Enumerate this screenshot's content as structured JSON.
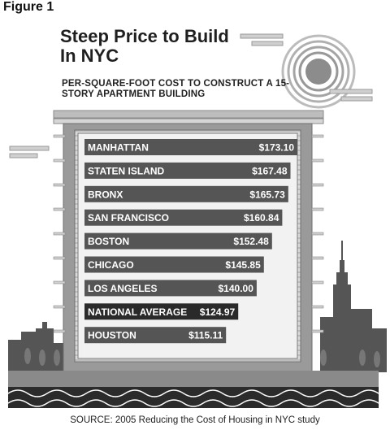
{
  "figure_label": "Figure 1",
  "source": "SOURCE: 2005 Reducing the Cost of Housing in NYC study",
  "chart_data": {
    "type": "bar",
    "orientation": "horizontal",
    "title": "Steep Price to Build In NYC",
    "subtitle": "PER-SQUARE-FOOT COST TO CONSTRUCT A 15-STORY APARTMENT BUILDING",
    "categories": [
      "MANHATTAN",
      "STATEN ISLAND",
      "BRONX",
      "SAN FRANCISCO",
      "BOSTON",
      "CHICAGO",
      "LOS ANGELES",
      "NATIONAL AVERAGE",
      "HOUSTON"
    ],
    "values": [
      173.1,
      167.48,
      165.73,
      160.84,
      152.48,
      145.85,
      140.0,
      124.97,
      115.11
    ],
    "value_labels": [
      "$173.10",
      "$167.48",
      "$165.73",
      "$160.84",
      "$152.48",
      "$145.85",
      "$140.00",
      "$124.97",
      "$115.11"
    ],
    "highlight_category": "NATIONAL AVERAGE",
    "xlim": [
      0,
      173.1
    ],
    "grid": false,
    "colors": {
      "bar": "#555555",
      "highlight_bar": "#2a2a2a",
      "bar_text": "#ffffff"
    }
  }
}
